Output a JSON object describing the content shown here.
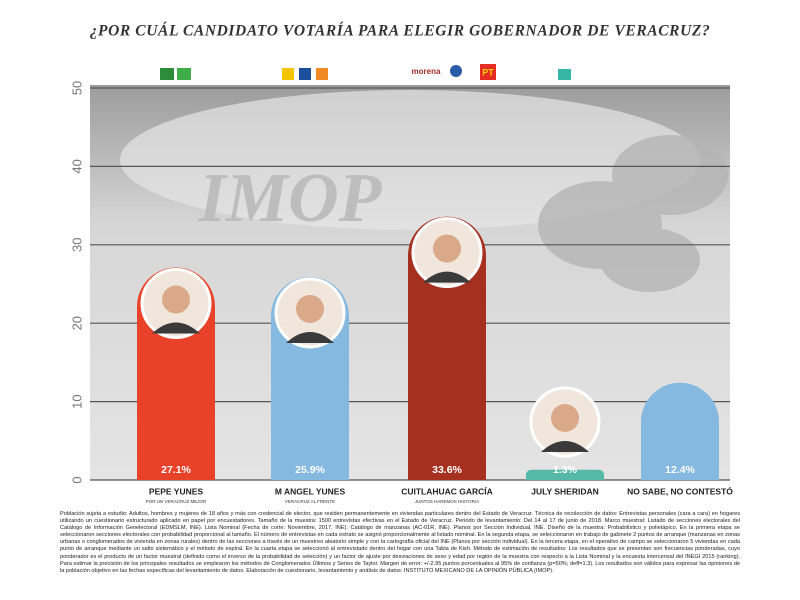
{
  "chart_data": {
    "type": "bar",
    "title": "¿POR CUÁL CANDIDATO VOTARÍA PARA ELEGIR GOBERNADOR DE VERACRUZ?",
    "watermark": "IMOP",
    "parties": [
      "morena",
      "PT"
    ],
    "categories": [
      "PEPE YUNES",
      "M ANGEL YUNES",
      "CUITLAHUAC GARCÍA",
      "JULY SHERIDAN",
      "NO SABE, NO CONTESTÓ"
    ],
    "subtitles": [
      "POR UN VERACRUZ MEJOR",
      "VERACRUZ AL FRENTE",
      "JUNTOS HAREMOS HISTORIA",
      null,
      null
    ],
    "values": [
      27.1,
      25.9,
      33.6,
      1.3,
      12.4
    ],
    "value_labels": [
      "27.1%",
      "25.9%",
      "33.6%",
      "1.3%",
      "12.4%"
    ],
    "colors": [
      "#e8432a",
      "#86b9df",
      "#a5301f",
      "#56b8a6",
      "#86b9df"
    ],
    "ylim": [
      0,
      50
    ],
    "yticks": [
      0,
      10,
      20,
      30,
      40,
      50
    ],
    "grid": true,
    "footnote": "Población sujeta a estudio: Adultos, hombres y mujeres de 18 años y más con credencial de elector, que residen permanentemente en viviendas particulares dentro del Estado de Veracruz. Técnica de recolección de datos: Entrevistas personales (cara a cara) en hogares utilizando un cuestionario estructurado aplicado en papel por encuestadores. Tamaño de la muestra: 1500 entrevistas efectivas en el Estado de Veracruz. Periodo de levantamiento: Del 14 al 17 de junio de 2018. Marco muestral: Listado de secciones electorales del Catálogo de Información Geoelectoral (EDMSLM, INE). Lista Nominal (Fecha de corte: Noviembre, 2017, INE). Catálogo de manzanas (AC-01R, INE). Planos por Sección Individual, INE. Diseño de la muestra: Probabilístico y polietápico. En la primera etapa se seleccionaron secciones electorales con probabilidad proporcional al tamaño. El número de entrevistas en cada estrato se asignó proporcionalmente al listado nominal. En la segunda etapa, se seleccionaron en trabajo de gabinete 2 puntos de arranque (manzanas en zonas urbanas o conglomerados de vivienda en zonas rurales) dentro de las secciones a través de un muestreo aleatorio simple y con la cartografía oficial del INE (Planos por sección individual). En la tercera etapa, en el operativo de campo se seleccionaron 5 viviendas en cada punto de arranque mediante un salto sistemático y el método de espiral. En la cuarta etapa se seleccionó al entrevistado dentro del hogar con una Tabla de Kish. Método de estimación de resultados: Los resultados que se presentan son frecuencias ponderadas, cuyo ponderador es el producto de un factor muestral (definido como el inverso de la probabilidad de selección) y un factor de ajuste por desviaciones de sexo y edad por región de la muestra con respecto a la Lista Nominal y la encuesta intercensal del INEGI 2015 (ranking). Para estimar la precisión de los principales resultados se emplearon los métodos de Conglomerados Últimos y Series de Taylor. Margen de error: +/-2.95 puntos porcentuales al 95% de confianza (p=50%; deff=1.3). Los resultados son válidos para expresar las opiniones de la población objetivo en las fechas específicas del levantamiento de datos. Elaboración de cuestionario, levantamiento y análisis de datos: INSTITUTO MEXICANO DE LA OPINIÓN PÚBLICA (IMOP)."
  }
}
